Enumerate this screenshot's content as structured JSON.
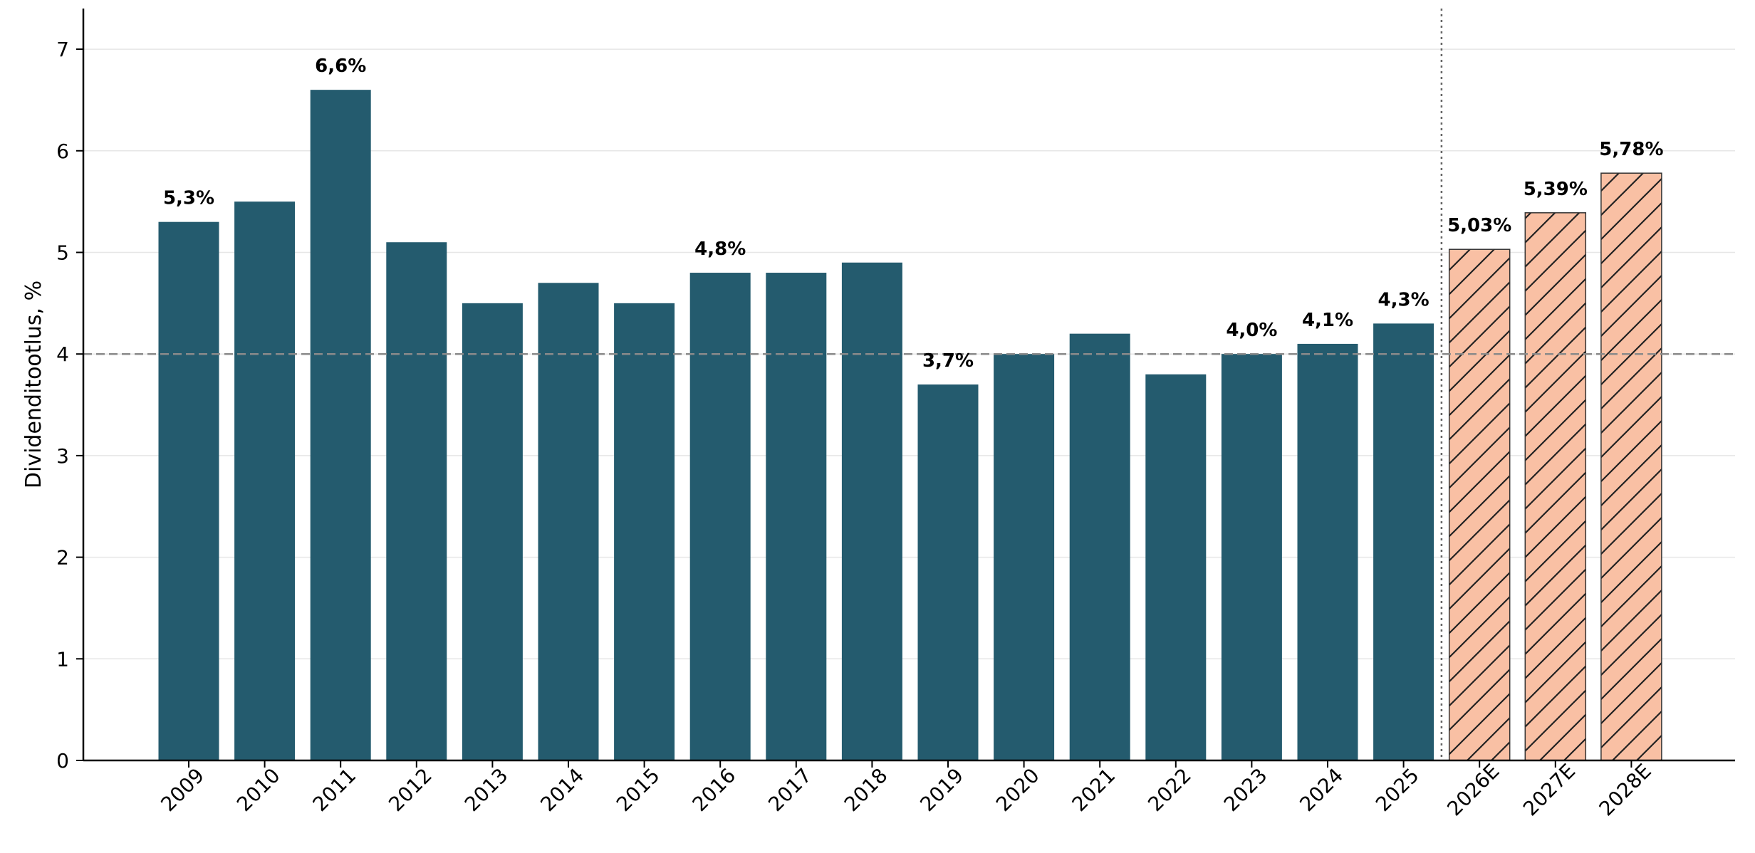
{
  "chart_data": {
    "type": "bar",
    "ylabel": "Dividenditootlus, %",
    "ylim": [
      0,
      7.4
    ],
    "yticks": [
      0,
      1,
      2,
      3,
      4,
      5,
      6,
      7
    ],
    "grid": "horizontal",
    "reference_line": {
      "y": 4,
      "style": "dashed"
    },
    "forecast_divider_after": "2025",
    "colors": {
      "actual": "#245b6e",
      "forecast_fill": "#f9c0a4",
      "forecast_edge": "#333333",
      "hatch": "#222222"
    },
    "categories": [
      "2009",
      "2010",
      "2011",
      "2012",
      "2013",
      "2014",
      "2015",
      "2016",
      "2017",
      "2018",
      "2019",
      "2020",
      "2021",
      "2022",
      "2023",
      "2024",
      "2025",
      "2026E",
      "2027E",
      "2028E"
    ],
    "series": [
      {
        "values": [
          5.3,
          5.5,
          6.6,
          5.1,
          4.5,
          4.7,
          4.5,
          4.8,
          4.8,
          4.9,
          3.7,
          4.0,
          4.2,
          3.8,
          4.0,
          4.1,
          4.3,
          5.03,
          5.39,
          5.78
        ],
        "forecast": [
          false,
          false,
          false,
          false,
          false,
          false,
          false,
          false,
          false,
          false,
          false,
          false,
          false,
          false,
          false,
          false,
          false,
          true,
          true,
          true
        ]
      }
    ],
    "data_labels": [
      "5,3%",
      "",
      "6,6%",
      "",
      "",
      "",
      "",
      "4,8%",
      "",
      "",
      "3,7%",
      "",
      "",
      "",
      "4,0%",
      "4,1%",
      "4,3%",
      "5,03%",
      "5,39%",
      "5,78%"
    ]
  }
}
